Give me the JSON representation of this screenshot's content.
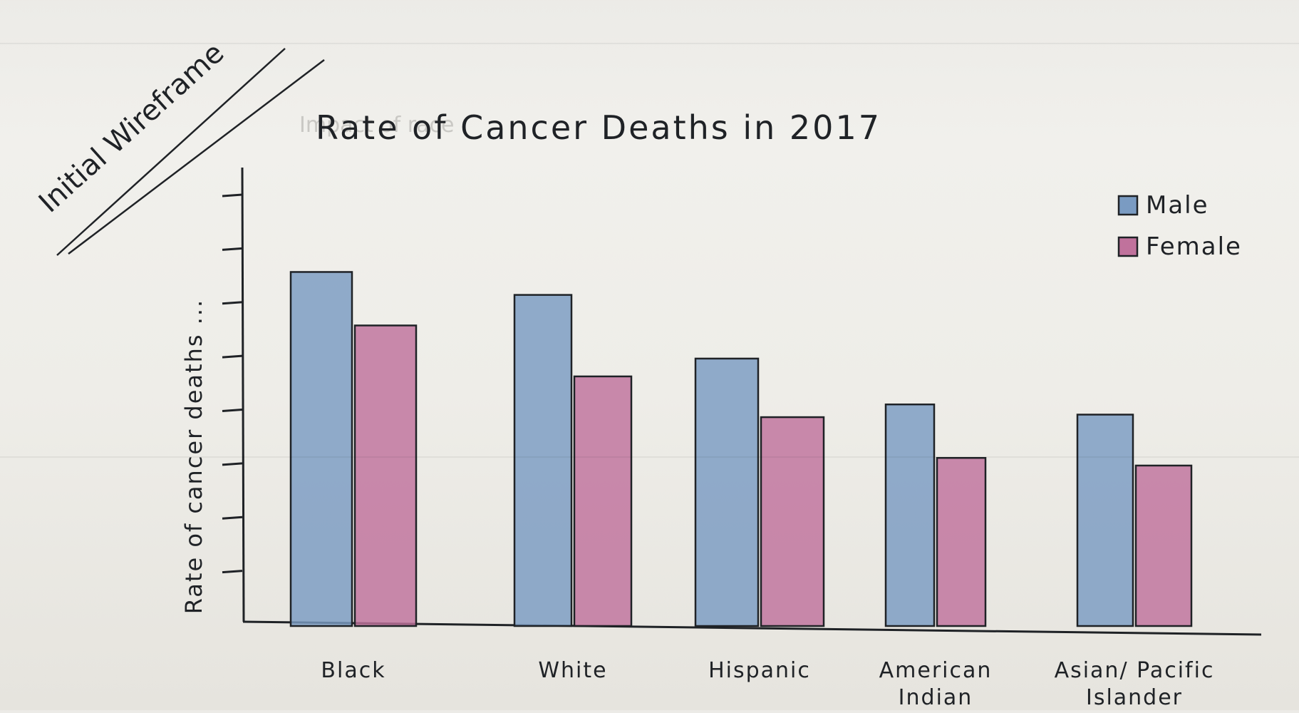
{
  "sketch": {
    "corner_note": "Initial Wireframe",
    "ghost_text": "Impact of race"
  },
  "colors": {
    "male": "#7a9bc2",
    "female": "#c0729c",
    "ink": "#1f2226",
    "paper": "#eeede8"
  },
  "chart_data": {
    "type": "bar",
    "title": "Rate of Cancer Deaths in 2017",
    "xlabel": "",
    "ylabel": "Rate of cancer deaths ...",
    "categories": [
      "Black",
      "White",
      "Hispanic",
      "American Indian",
      "Asian/ Pacific Islander"
    ],
    "category_lines": [
      [
        "Black"
      ],
      [
        "White"
      ],
      [
        "Hispanic"
      ],
      [
        "American",
        "Indian"
      ],
      [
        "Asian/ Pacific",
        "Islander"
      ]
    ],
    "series": [
      {
        "name": "Male",
        "values": [
          6.95,
          6.5,
          5.25,
          4.35,
          4.15
        ]
      },
      {
        "name": "Female",
        "values": [
          5.9,
          4.9,
          4.1,
          3.3,
          3.15
        ]
      }
    ],
    "ylim": [
      0,
      9
    ],
    "y_ticks": 8,
    "tick_labels_printed": false,
    "grid": false,
    "legend_position": "top-right"
  }
}
